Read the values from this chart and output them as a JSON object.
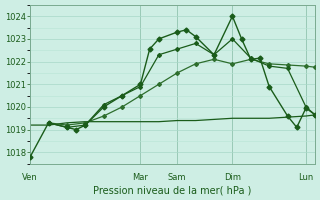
{
  "xlabel": "Pression niveau de la mer( hPa )",
  "ylim": [
    1017.5,
    1024.5
  ],
  "yticks": [
    1018,
    1019,
    1020,
    1021,
    1022,
    1023,
    1024
  ],
  "bg_color": "#ceeee4",
  "grid_color": "#a8d8c8",
  "grid_minor_color": "#b8e4d4",
  "line_color_dark": "#1a5c1a",
  "line_color_mid": "#2d6e2d",
  "x_day_labels": [
    "Ven",
    "Mar",
    "Sam",
    "Dim",
    "Lun"
  ],
  "x_day_positions": [
    0,
    12,
    16,
    22,
    30
  ],
  "total_points": 32,
  "series_A_x": [
    0,
    2,
    4,
    5,
    6,
    8,
    10,
    12,
    13,
    14,
    16,
    17,
    18,
    20,
    22,
    23,
    24,
    25,
    26,
    28,
    29,
    30,
    31
  ],
  "series_A_y": [
    1017.8,
    1019.3,
    1019.1,
    1019.0,
    1019.2,
    1020.0,
    1020.5,
    1021.0,
    1022.55,
    1023.0,
    1023.3,
    1023.4,
    1023.1,
    1022.3,
    1024.0,
    1023.0,
    1022.1,
    1022.15,
    1020.9,
    1019.6,
    1019.1,
    1019.95,
    1019.65
  ],
  "series_B_x": [
    2,
    4,
    6,
    8,
    10,
    12,
    14,
    16,
    18,
    20,
    22,
    24,
    26,
    28,
    30,
    31
  ],
  "series_B_y": [
    1019.3,
    1019.1,
    1019.2,
    1020.1,
    1020.5,
    1020.9,
    1022.3,
    1022.55,
    1022.8,
    1022.3,
    1023.0,
    1022.15,
    1021.8,
    1021.7,
    1020.0,
    1019.65
  ],
  "series_C_x": [
    2,
    4,
    6,
    8,
    10,
    12,
    14,
    16,
    18,
    20,
    22,
    24,
    26,
    28,
    30,
    31
  ],
  "series_C_y": [
    1019.3,
    1019.2,
    1019.3,
    1019.6,
    1020.0,
    1020.5,
    1021.0,
    1021.5,
    1021.9,
    1022.1,
    1021.9,
    1022.1,
    1021.9,
    1021.85,
    1021.8,
    1021.75
  ],
  "series_D_x": [
    0,
    2,
    4,
    6,
    8,
    10,
    12,
    14,
    16,
    18,
    20,
    22,
    24,
    26,
    28,
    30,
    31
  ],
  "series_D_y": [
    1019.2,
    1019.2,
    1019.3,
    1019.35,
    1019.35,
    1019.35,
    1019.35,
    1019.35,
    1019.4,
    1019.4,
    1019.45,
    1019.5,
    1019.5,
    1019.5,
    1019.55,
    1019.6,
    1019.65
  ],
  "vline_positions": [
    0,
    12,
    16,
    22,
    30
  ]
}
